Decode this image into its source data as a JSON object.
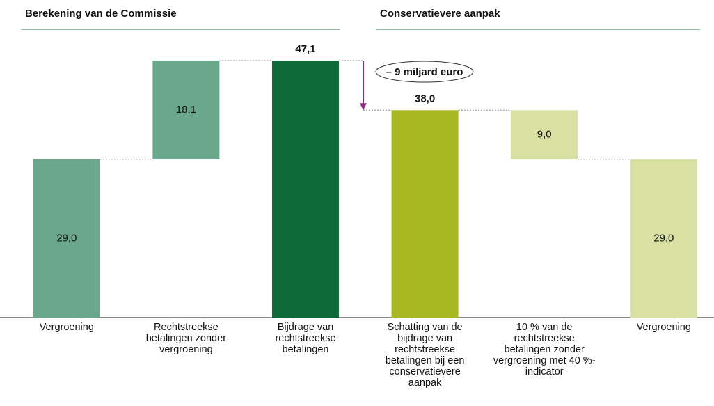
{
  "chart_data": {
    "type": "waterfall",
    "section_titles": [
      "Berekening van de Commissie",
      "Conservatievere aanpak"
    ],
    "annotation": "– 9 miljard euro",
    "categories": [
      "Vergroening",
      "Rechtstreekse betalingen zonder vergroening",
      "Bijdrage van rechtstreekse betalingen",
      "Schatting van de bijdrage van rechtstreekse betalingen bij een conservatievere aanpak",
      "10 % van de rechtstreekse betalingen zonder vergroening met 40 %-indicator",
      "Vergroening"
    ],
    "values": [
      29.0,
      18.1,
      47.1,
      38.0,
      9.0,
      29.0
    ],
    "value_labels": [
      "29,0",
      "18,1",
      "47,1",
      "38,0",
      "9,0",
      "29,0"
    ],
    "measures": [
      "increase",
      "increase",
      "total",
      "total",
      "decrease",
      "total"
    ],
    "colors": [
      "#6ba78a",
      "#6ba78a",
      "#0e6a39",
      "#a8b824",
      "#d8e0a4",
      "#d8e0a4"
    ],
    "annotation_color": "#8a2a7e"
  }
}
